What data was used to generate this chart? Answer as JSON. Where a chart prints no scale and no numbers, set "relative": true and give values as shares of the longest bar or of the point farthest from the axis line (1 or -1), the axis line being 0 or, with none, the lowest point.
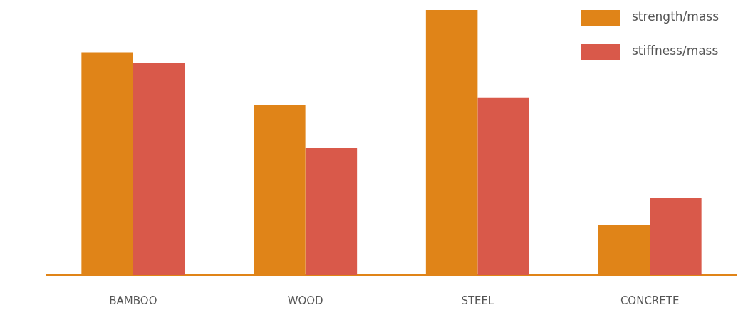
{
  "chart_data": {
    "type": "bar",
    "relative": true,
    "categories": [
      "BAMBOO",
      "WOOD",
      "STEEL",
      "CONCRETE"
    ],
    "legend": "top right",
    "grid": false,
    "series": [
      {
        "name": "strength/mass",
        "color": "#e08418",
        "values": [
          0.84,
          0.64,
          1,
          0.19
        ]
      },
      {
        "name": "stiffness/mass",
        "color": "#d9594a",
        "values": [
          0.8,
          0.48,
          0.67,
          0.29
        ]
      }
    ]
  }
}
